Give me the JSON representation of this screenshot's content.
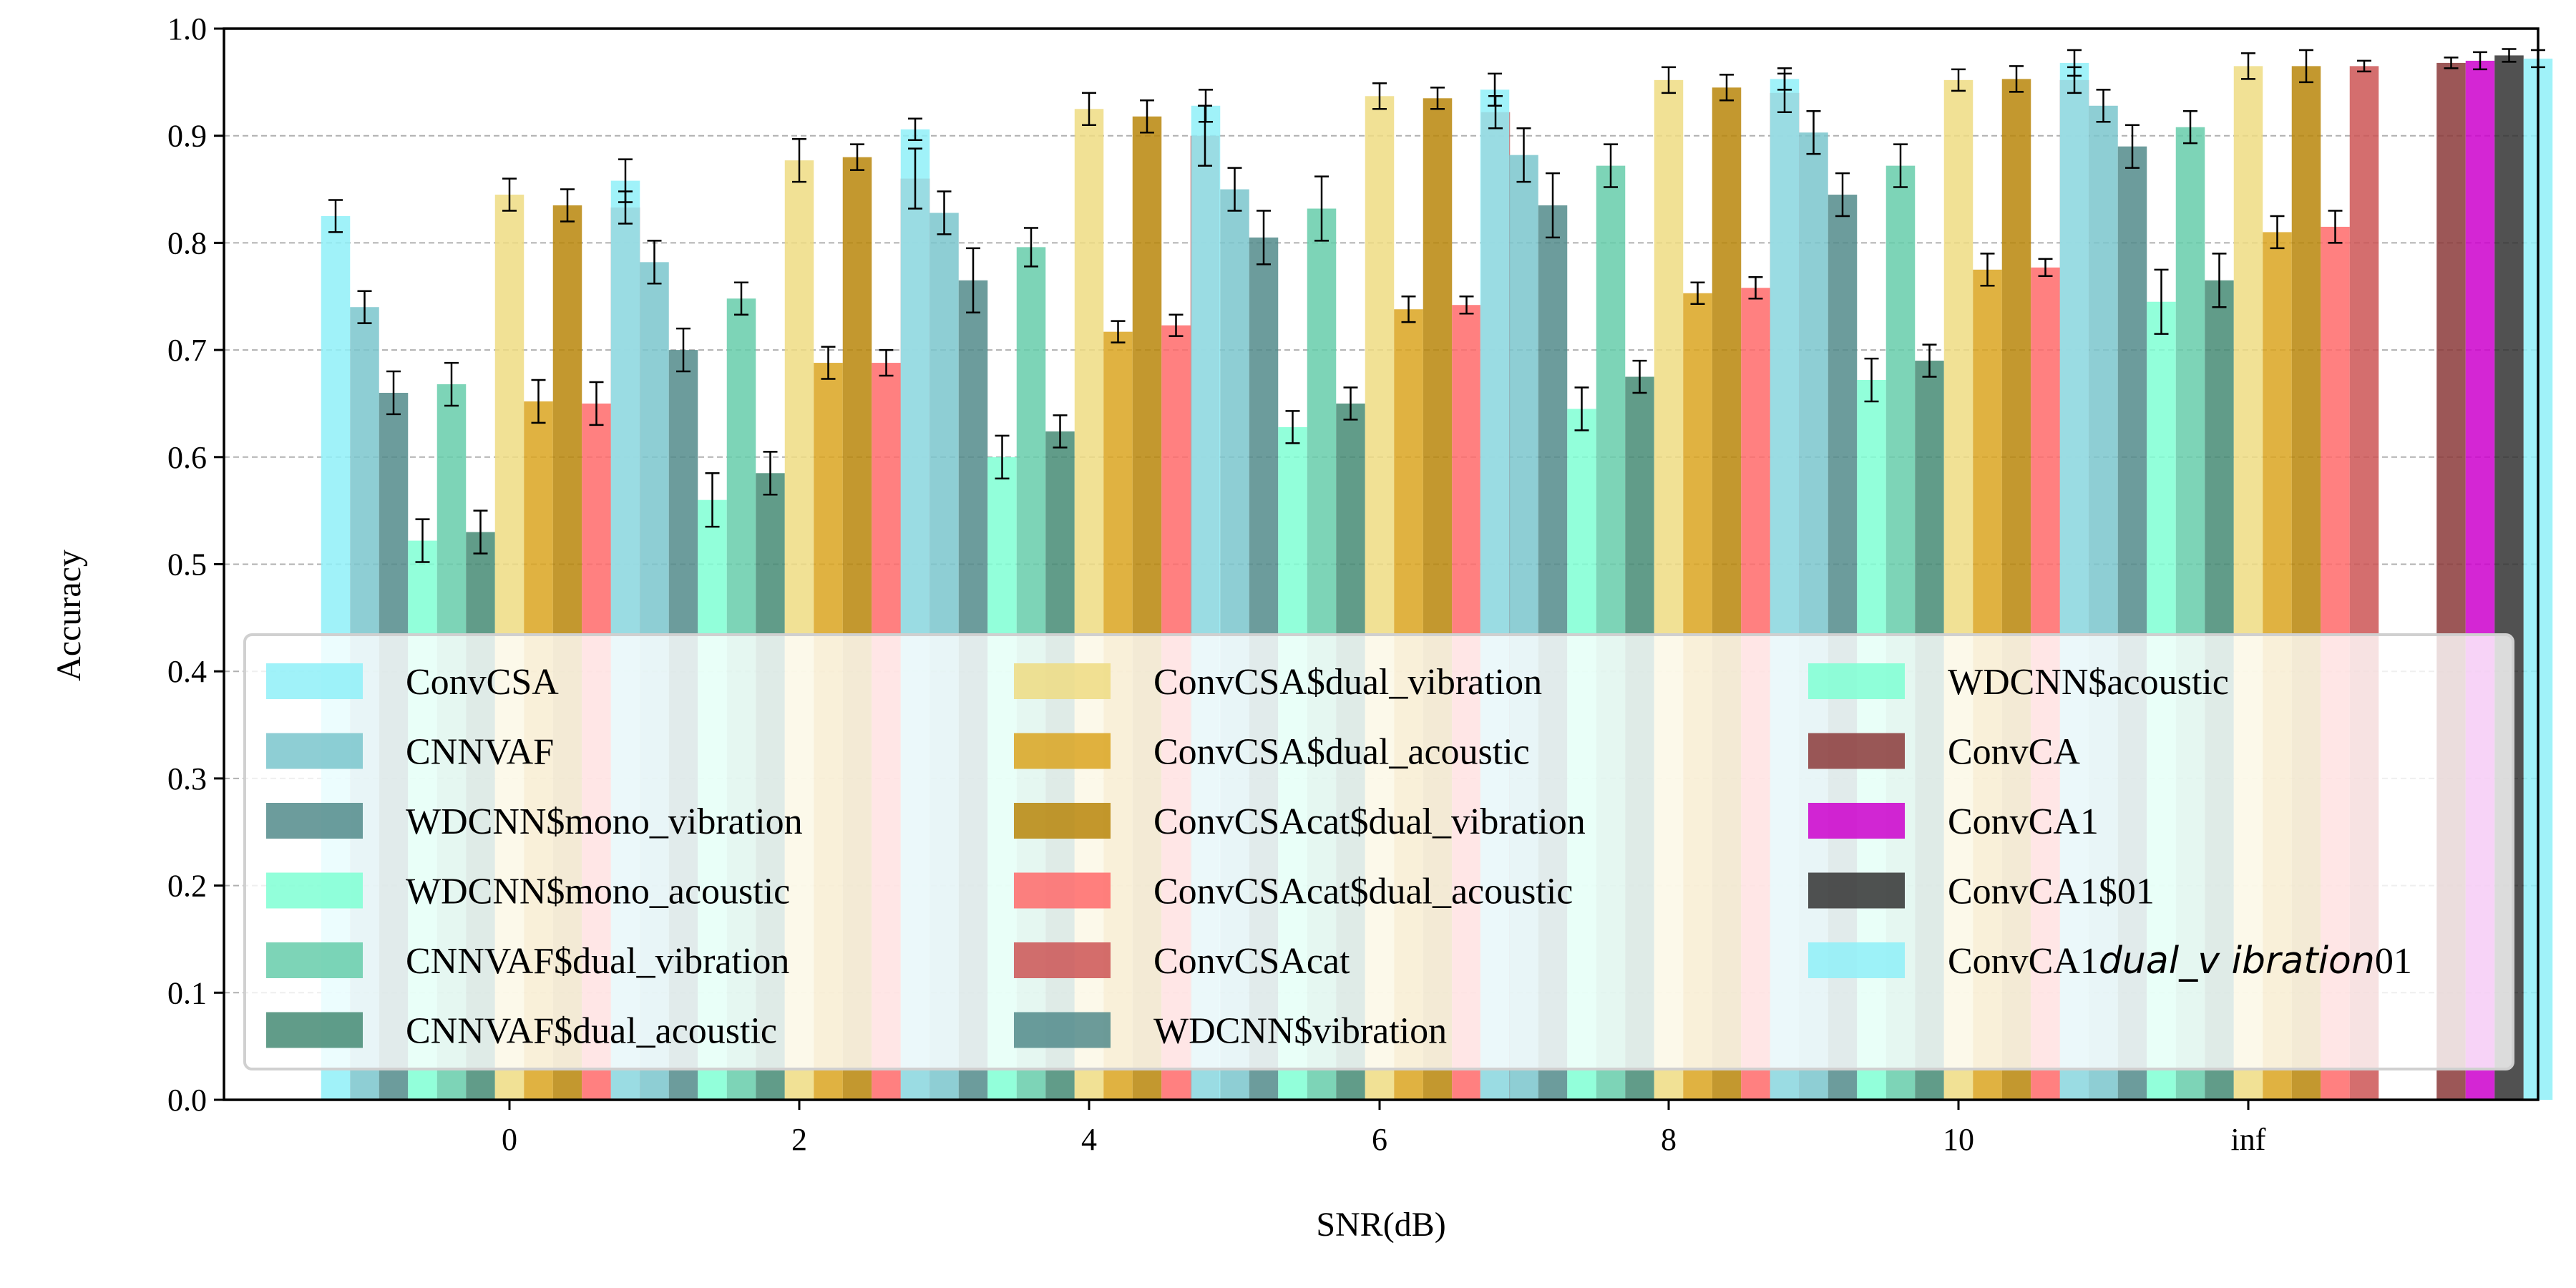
{
  "chart_data": {
    "type": "bar",
    "title": "",
    "xlabel": "SNR(dB)",
    "ylabel": "Accuracy",
    "categories": [
      "0",
      "2",
      "4",
      "6",
      "8",
      "10",
      "inf"
    ],
    "ylim": [
      0.0,
      1.0
    ],
    "yticks": [
      "0.0",
      "0.1",
      "0.2",
      "0.3",
      "0.4",
      "0.5",
      "0.6",
      "0.7",
      "0.8",
      "0.9",
      "1.0"
    ],
    "grid": "horizontal dashed",
    "legend_placement": "bottom, 3 columns",
    "series": [
      {
        "name": "ConvCSA",
        "color": "#8ff0f8",
        "values": [
          0.825,
          0.858,
          0.906,
          0.928,
          0.943,
          0.953,
          0.968
        ],
        "errors": [
          0.015,
          0.02,
          0.01,
          0.015,
          0.015,
          0.01,
          0.012
        ]
      },
      {
        "name": "CNNVAF",
        "color": "#7ac5cd",
        "values": [
          0.74,
          0.782,
          0.828,
          0.85,
          0.882,
          0.903,
          0.928
        ],
        "errors": [
          0.015,
          0.02,
          0.02,
          0.02,
          0.025,
          0.02,
          0.015
        ]
      },
      {
        "name": "WDCNN$mono_vibration",
        "color": "#528b8b",
        "values": [
          0.66,
          0.7,
          0.765,
          0.805,
          0.835,
          0.845,
          0.89
        ],
        "errors": [
          0.02,
          0.02,
          0.03,
          0.025,
          0.03,
          0.02,
          0.02
        ]
      },
      {
        "name": "WDCNN$mono_acoustic",
        "color": "#7fffd4",
        "values": [
          0.522,
          0.56,
          0.6,
          0.628,
          0.645,
          0.672,
          0.745
        ],
        "errors": [
          0.02,
          0.025,
          0.02,
          0.015,
          0.02,
          0.02,
          0.03
        ]
      },
      {
        "name": "CNNVAF$dual_vibration",
        "color": "#66cdaa",
        "values": [
          0.668,
          0.748,
          0.796,
          0.832,
          0.872,
          0.872,
          0.908
        ],
        "errors": [
          0.02,
          0.015,
          0.018,
          0.03,
          0.02,
          0.02,
          0.015
        ]
      },
      {
        "name": "CNNVAF$dual_acoustic",
        "color": "#458b74",
        "values": [
          0.53,
          0.585,
          0.624,
          0.65,
          0.675,
          0.69,
          0.765
        ],
        "errors": [
          0.02,
          0.02,
          0.015,
          0.015,
          0.015,
          0.015,
          0.025
        ]
      },
      {
        "name": "ConvCSA$dual_vibration",
        "color": "#eedc82",
        "values": [
          0.845,
          0.877,
          0.925,
          0.937,
          0.952,
          0.952,
          0.965
        ],
        "errors": [
          0.015,
          0.02,
          0.015,
          0.012,
          0.012,
          0.01,
          0.012
        ]
      },
      {
        "name": "ConvCSA$dual_acoustic",
        "color": "#daa520",
        "values": [
          0.652,
          0.688,
          0.717,
          0.738,
          0.753,
          0.775,
          0.81
        ],
        "errors": [
          0.02,
          0.015,
          0.01,
          0.012,
          0.01,
          0.015,
          0.015
        ]
      },
      {
        "name": "ConvCSAcat$dual_vibration",
        "color": "#b8860b",
        "values": [
          0.835,
          0.88,
          0.918,
          0.935,
          0.945,
          0.953,
          0.965
        ],
        "errors": [
          0.015,
          0.012,
          0.015,
          0.01,
          0.012,
          0.012,
          0.015
        ]
      },
      {
        "name": "ConvCSAcat$dual_acoustic",
        "color": "#ff6a6a",
        "values": [
          0.65,
          0.688,
          0.723,
          0.742,
          0.758,
          0.777,
          0.815
        ],
        "errors": [
          0.02,
          0.012,
          0.01,
          0.008,
          0.01,
          0.008,
          0.015
        ]
      },
      {
        "name": "ConvCSAcat",
        "color": "#cd5555",
        "values": [
          0.833,
          0.86,
          0.9,
          0.922,
          0.94,
          0.952,
          0.965
        ],
        "errors": [
          0.015,
          0.028,
          0.028,
          0.015,
          0.018,
          0.012,
          0.005
        ]
      },
      {
        "name": "WDCNN$vibration",
        "color": "#528b8b",
        "values": [
          0.0,
          0.0,
          0.0,
          0.0,
          0.0,
          0.0,
          0.0
        ],
        "errors": [
          0,
          0,
          0,
          0,
          0,
          0,
          0
        ]
      },
      {
        "name": "WDCNN$acoustic",
        "color": "#7fffd4",
        "values": [
          0.0,
          0.0,
          0.0,
          0.0,
          0.0,
          0.0,
          0.0
        ],
        "errors": [
          0,
          0,
          0,
          0,
          0,
          0,
          0
        ]
      },
      {
        "name": "ConvCA",
        "color": "#8b3a3a",
        "values": [
          null,
          null,
          null,
          null,
          null,
          null,
          0.968
        ],
        "errors": [
          null,
          null,
          null,
          null,
          null,
          null,
          0.005
        ]
      },
      {
        "name": "ConvCA1",
        "color": "#cd00cd",
        "values": [
          null,
          null,
          null,
          null,
          null,
          null,
          0.97
        ],
        "errors": [
          null,
          null,
          null,
          null,
          null,
          null,
          0.008
        ]
      },
      {
        "name": "ConvCA1$01",
        "color": "#333333",
        "values": [
          null,
          null,
          null,
          null,
          null,
          null,
          0.975
        ],
        "errors": [
          null,
          null,
          null,
          null,
          null,
          null,
          0.006
        ]
      },
      {
        "name": "ConvCA1dual_vibration01",
        "color": "#8ff0f8",
        "values": [
          null,
          null,
          null,
          null,
          null,
          null,
          0.972
        ],
        "errors": [
          null,
          null,
          null,
          null,
          null,
          null,
          0.008
        ]
      }
    ],
    "legend": [
      {
        "series": 0,
        "label": "ConvCSA"
      },
      {
        "series": 1,
        "label": "CNNVAF"
      },
      {
        "series": 2,
        "label": "WDCNN$mono_vibration"
      },
      {
        "series": 3,
        "label": "WDCNN$mono_acoustic"
      },
      {
        "series": 4,
        "label": "CNNVAF$dual_vibration"
      },
      {
        "series": 5,
        "label": "CNNVAF$dual_acoustic"
      },
      {
        "series": 6,
        "label": "ConvCSA$dual_vibration"
      },
      {
        "series": 7,
        "label": "ConvCSA$dual_acoustic"
      },
      {
        "series": 8,
        "label": "ConvCSAcat$dual_vibration"
      },
      {
        "series": 9,
        "label": "ConvCSAcat$dual_acoustic"
      },
      {
        "series": 10,
        "label": "ConvCSAcat"
      },
      {
        "series": 11,
        "label": "WDCNN$vibration"
      },
      {
        "series": 12,
        "label": "WDCNN$acoustic"
      },
      {
        "series": 13,
        "label": "ConvCA"
      },
      {
        "series": 14,
        "label": "ConvCA1"
      },
      {
        "series": 15,
        "label": "ConvCA1$01"
      },
      {
        "series": 16,
        "label": "ConvCA1",
        "math_label": "dual_v ibration",
        "label_suffix": "01"
      }
    ]
  }
}
